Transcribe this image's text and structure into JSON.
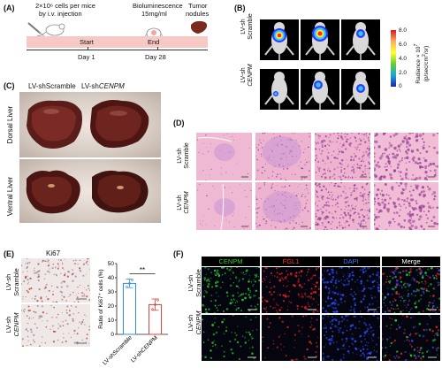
{
  "panel_a": {
    "label": "(A)",
    "injection_text": [
      "2×10⁶ cells per mice",
      "by i.v. injection"
    ],
    "biolum_text": [
      "Bioluminescence",
      "15mg/ml"
    ],
    "nodules_text": [
      "Tumor",
      "nodules"
    ],
    "start_label": "Start",
    "end_label": "End",
    "day1": "Day 1",
    "day28": "Day 28",
    "bar_color": "#f7c9c4"
  },
  "panel_b": {
    "label": "(B)",
    "row1_label": "LV-sh\nScramble",
    "row2_label": "LV-sh\nCENPM",
    "colorbar_ticks": [
      "8.0",
      "6.0",
      "4.0",
      "2.0",
      "0"
    ],
    "colorbar_title": "Radiance × 10⁷\n(p/sec/cm²/sr)"
  },
  "panel_c": {
    "label": "(C)",
    "col1": "LV-shScramble",
    "col2": "LV-shCENPM",
    "row1": "Dorsal Liver",
    "row2": "Ventral Liver"
  },
  "panel_d": {
    "label": "(D)",
    "row1": "LV-sh\nScramble",
    "row2": "LV-sh\nCENPM"
  },
  "panel_e": {
    "label": "(E)",
    "ihc_title": "Ki67",
    "row1": "LV-sh\nScramble",
    "row2": "LV-sh\nCENPM",
    "significance": "**",
    "ylabel": "Ratio of Ki67⁺ cells (%)"
  },
  "panel_f": {
    "label": "(F)",
    "headers": [
      {
        "text": "CENPM",
        "color": "#2fd12f"
      },
      {
        "text": "FGL1",
        "color": "#ff3333"
      },
      {
        "text": "DAPI",
        "color": "#3a7bff"
      },
      {
        "text": "Merge",
        "color": "#ffffff"
      }
    ],
    "row1": "LV-sh\nScramble",
    "row2": "LV-sh\nCENPM"
  },
  "chart_data": {
    "type": "bar",
    "categories": [
      "LV-shScramble",
      "LV-shCENPM"
    ],
    "values": [
      36,
      21
    ],
    "errors": [
      3,
      4
    ],
    "colors": [
      "#2f8fe0",
      "#e0413a"
    ],
    "ylabel": "Ratio of Ki67⁺ cells (%)",
    "ylim": [
      0,
      50
    ],
    "yticks": [
      0,
      10,
      20,
      30,
      40,
      50
    ],
    "significance": "**"
  }
}
